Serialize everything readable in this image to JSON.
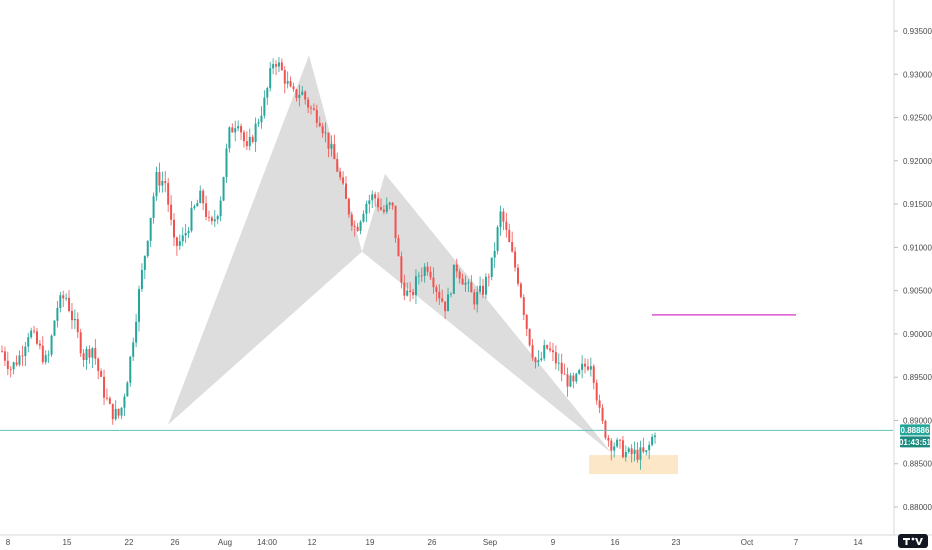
{
  "colors": {
    "up": "#26a69a",
    "down": "#ef5350",
    "pattern_fill": "#d9d9d9",
    "price_line": "#5fc2bc",
    "target_line": "#d633c7",
    "zone_fill": "#fde3c0",
    "badge_price": "#26a69a",
    "badge_timer": "#1c8a7f"
  },
  "price_badge": {
    "price": "0.88886",
    "countdown": "01:43:51"
  },
  "logo": {
    "name": "tradingview-logo-icon"
  },
  "chart_data": {
    "type": "candlestick",
    "title": "",
    "y_axis": {
      "side": "right",
      "ticks": [
        "0.93500",
        "0.93000",
        "0.92500",
        "0.92000",
        "0.91500",
        "0.91000",
        "0.90500",
        "0.90000",
        "0.89500",
        "0.89000",
        "0.88500",
        "0.88000"
      ],
      "ylim": [
        0.877,
        0.936
      ]
    },
    "x_axis": {
      "ticks": [
        "8",
        "15",
        "22",
        "26",
        "Aug",
        "14:00",
        "12",
        "19",
        "26",
        "Sep",
        "9",
        "16",
        "23",
        "Oct",
        "7",
        "14"
      ]
    },
    "grid": false,
    "current_price": 0.88886,
    "pattern": {
      "type": "bat",
      "points": [
        {
          "date": "Jul 25",
          "price": 0.8895
        },
        {
          "date": "Aug 12",
          "price": 0.9322
        },
        {
          "date": "Aug 19",
          "price": 0.9095
        },
        {
          "date": "Aug 22",
          "price": 0.9185
        },
        {
          "date": "Sep 15",
          "price": 0.8862
        }
      ]
    },
    "target_level": {
      "from": "Sep 23",
      "to": "Oct 7",
      "price": 0.9022
    },
    "zone": {
      "from": "Sep 13",
      "to": "Sep 23",
      "low": 0.8838,
      "high": 0.886
    },
    "series_ohlc_path": [
      0.898,
      0.896,
      0.8975,
      0.9005,
      0.8985,
      0.8965,
      0.903,
      0.9045,
      0.901,
      0.8975,
      0.8985,
      0.894,
      0.891,
      0.8905,
      0.896,
      0.904,
      0.911,
      0.918,
      0.9175,
      0.91,
      0.911,
      0.914,
      0.916,
      0.912,
      0.915,
      0.923,
      0.925,
      0.921,
      0.924,
      0.927,
      0.932,
      0.93,
      0.9275,
      0.928,
      0.926,
      0.925,
      0.922,
      0.919,
      0.915,
      0.912,
      0.915,
      0.916,
      0.914,
      0.915,
      0.906,
      0.904,
      0.907,
      0.908,
      0.905,
      0.903,
      0.908,
      0.906,
      0.904,
      0.905,
      0.908,
      0.914,
      0.91,
      0.906,
      0.9,
      0.896,
      0.8985,
      0.897,
      0.895,
      0.894,
      0.896,
      0.897,
      0.89,
      0.8875,
      0.887,
      0.886,
      0.8862,
      0.886,
      0.8889
    ]
  }
}
